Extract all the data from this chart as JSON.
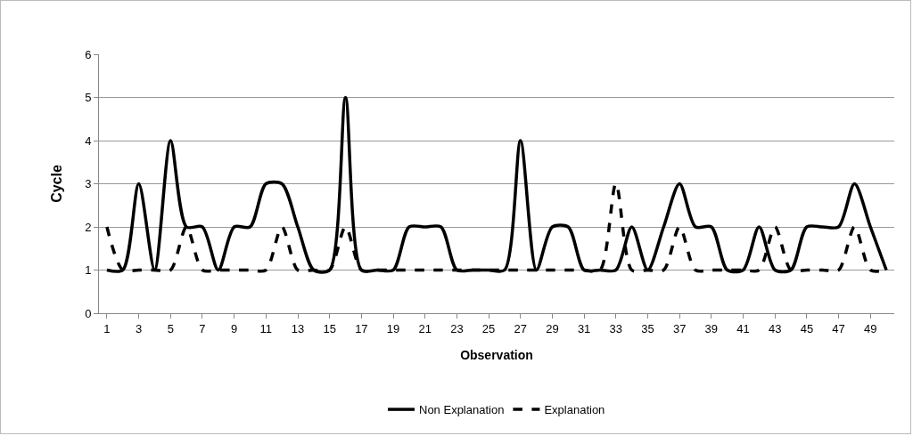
{
  "chart_data": {
    "type": "line",
    "xlabel": "Observation",
    "ylabel": "Cycle",
    "x": [
      1,
      2,
      3,
      4,
      5,
      6,
      7,
      8,
      9,
      10,
      11,
      12,
      13,
      14,
      15,
      16,
      17,
      18,
      19,
      20,
      21,
      22,
      23,
      24,
      25,
      26,
      27,
      28,
      29,
      30,
      31,
      32,
      33,
      34,
      35,
      36,
      37,
      38,
      39,
      40,
      41,
      42,
      43,
      44,
      45,
      46,
      47,
      48,
      49,
      50
    ],
    "series": [
      {
        "name": "Non Explanation",
        "color": "#000000",
        "line_style": "solid",
        "values": [
          1,
          1,
          3,
          1,
          4,
          2,
          2,
          1,
          2,
          2,
          3,
          3,
          2,
          1,
          1,
          5,
          1,
          1,
          1,
          2,
          2,
          2,
          1,
          1,
          1,
          1,
          4,
          1,
          2,
          2,
          1,
          1,
          1,
          2,
          1,
          2,
          3,
          2,
          2,
          1,
          1,
          2,
          1,
          1,
          2,
          2,
          2,
          3,
          2,
          1
        ]
      },
      {
        "name": "Explanation",
        "color": "#000000",
        "line_style": "dashed",
        "values": [
          2,
          1,
          1,
          1,
          1,
          2,
          1,
          1,
          1,
          1,
          1,
          2,
          1,
          1,
          1,
          2,
          1,
          1,
          1,
          1,
          1,
          1,
          1,
          1,
          1,
          1,
          1,
          1,
          1,
          1,
          1,
          1,
          3,
          1,
          1,
          1,
          2,
          1,
          1,
          1,
          1,
          1,
          2,
          1,
          1,
          1,
          1,
          2,
          1,
          1
        ]
      }
    ],
    "xlim": [
      0.5,
      50.5
    ],
    "xticks": [
      1,
      3,
      5,
      7,
      9,
      11,
      13,
      15,
      17,
      19,
      21,
      23,
      25,
      27,
      29,
      31,
      33,
      35,
      37,
      39,
      41,
      43,
      45,
      47,
      49
    ],
    "ylim": [
      0,
      6
    ],
    "yticks": [
      0,
      1,
      2,
      3,
      4,
      5,
      6
    ],
    "grid": "y",
    "legend": "bottom",
    "marker": "none"
  }
}
